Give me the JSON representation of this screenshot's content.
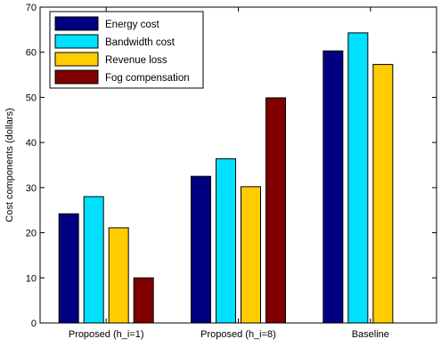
{
  "chart_data": {
    "type": "bar",
    "title": "",
    "xlabel": "",
    "ylabel": "Cost components (dollars)",
    "ylim": [
      0,
      70
    ],
    "yticks": [
      0,
      10,
      20,
      30,
      40,
      50,
      60,
      70
    ],
    "grid": false,
    "legend_position": "top-left",
    "categories": [
      "Proposed (h_i=1)",
      "Proposed (h_i=8)",
      "Baseline"
    ],
    "series": [
      {
        "name": "Energy cost",
        "color": "#000080",
        "values": [
          24.2,
          32.5,
          60.3
        ]
      },
      {
        "name": "Bandwidth cost",
        "color": "#00e0ff",
        "values": [
          28.0,
          36.4,
          64.3
        ]
      },
      {
        "name": "Revenue loss",
        "color": "#ffcc00",
        "values": [
          21.1,
          30.2,
          57.3
        ]
      },
      {
        "name": "Fog compensation",
        "color": "#800000",
        "values": [
          10.0,
          49.9,
          0
        ]
      }
    ]
  }
}
